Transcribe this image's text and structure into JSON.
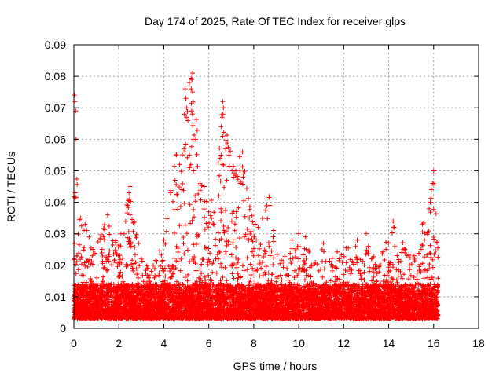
{
  "chart_data": {
    "type": "scatter",
    "title": "Day 174 of 2025, Rate Of TEC Index for receiver glps",
    "xlabel": "GPS time / hours",
    "ylabel": "ROTI / TECUs",
    "xlim": [
      0,
      18
    ],
    "ylim": [
      0,
      0.09
    ],
    "xticks": [
      0,
      2,
      4,
      6,
      8,
      10,
      12,
      14,
      16,
      18
    ],
    "xtick_labels": [
      "0",
      "2",
      "4",
      "6",
      "8",
      "10",
      "12",
      "14",
      "16",
      "18"
    ],
    "yticks": [
      0,
      0.01,
      0.02,
      0.03,
      0.04,
      0.05,
      0.06,
      0.07,
      0.08,
      0.09
    ],
    "ytick_labels": [
      "0",
      "0.01",
      "0.02",
      "0.03",
      "0.04",
      "0.05",
      "0.06",
      "0.07",
      "0.08",
      "0.09"
    ],
    "grid": true,
    "marker": "+",
    "color": "#ff0000",
    "data_range_hours": [
      0,
      16.2
    ],
    "baseline_band": [
      0.003,
      0.014
    ],
    "envelope": [
      {
        "x": 0.0,
        "ymax": 0.074
      },
      {
        "x": 0.1,
        "ymax": 0.06
      },
      {
        "x": 0.3,
        "ymax": 0.035
      },
      {
        "x": 1.0,
        "ymax": 0.028
      },
      {
        "x": 1.5,
        "ymax": 0.036
      },
      {
        "x": 2.0,
        "ymax": 0.028
      },
      {
        "x": 2.5,
        "ymax": 0.045
      },
      {
        "x": 3.0,
        "ymax": 0.022
      },
      {
        "x": 3.5,
        "ymax": 0.02
      },
      {
        "x": 4.0,
        "ymax": 0.028
      },
      {
        "x": 4.5,
        "ymax": 0.055
      },
      {
        "x": 5.0,
        "ymax": 0.076
      },
      {
        "x": 5.3,
        "ymax": 0.081
      },
      {
        "x": 5.7,
        "ymax": 0.045
      },
      {
        "x": 6.0,
        "ymax": 0.038
      },
      {
        "x": 6.6,
        "ymax": 0.072
      },
      {
        "x": 7.0,
        "ymax": 0.058
      },
      {
        "x": 7.5,
        "ymax": 0.056
      },
      {
        "x": 8.0,
        "ymax": 0.033
      },
      {
        "x": 8.7,
        "ymax": 0.042
      },
      {
        "x": 9.0,
        "ymax": 0.025
      },
      {
        "x": 10.0,
        "ymax": 0.03
      },
      {
        "x": 11.0,
        "ymax": 0.025
      },
      {
        "x": 12.0,
        "ymax": 0.025
      },
      {
        "x": 13.0,
        "ymax": 0.03
      },
      {
        "x": 13.5,
        "ymax": 0.02
      },
      {
        "x": 14.2,
        "ymax": 0.034
      },
      {
        "x": 15.0,
        "ymax": 0.022
      },
      {
        "x": 15.5,
        "ymax": 0.033
      },
      {
        "x": 15.8,
        "ymax": 0.04
      },
      {
        "x": 16.0,
        "ymax": 0.05
      },
      {
        "x": 16.2,
        "ymax": 0.025
      }
    ],
    "highlight_points": [
      {
        "x": 0.02,
        "y": 0.074
      },
      {
        "x": 0.05,
        "y": 0.072
      },
      {
        "x": 0.08,
        "y": 0.069
      },
      {
        "x": 0.1,
        "y": 0.06
      },
      {
        "x": 0.06,
        "y": 0.043
      },
      {
        "x": 5.28,
        "y": 0.081
      },
      {
        "x": 5.25,
        "y": 0.079
      },
      {
        "x": 5.22,
        "y": 0.076
      },
      {
        "x": 5.28,
        "y": 0.075
      },
      {
        "x": 4.95,
        "y": 0.076
      },
      {
        "x": 4.98,
        "y": 0.073
      },
      {
        "x": 5.02,
        "y": 0.07
      },
      {
        "x": 4.92,
        "y": 0.068
      },
      {
        "x": 5.0,
        "y": 0.067
      },
      {
        "x": 5.24,
        "y": 0.069
      },
      {
        "x": 5.27,
        "y": 0.068
      },
      {
        "x": 5.3,
        "y": 0.06
      },
      {
        "x": 4.55,
        "y": 0.055
      },
      {
        "x": 4.9,
        "y": 0.057
      },
      {
        "x": 4.95,
        "y": 0.056
      },
      {
        "x": 4.7,
        "y": 0.052
      },
      {
        "x": 5.2,
        "y": 0.052
      },
      {
        "x": 5.32,
        "y": 0.05
      },
      {
        "x": 4.5,
        "y": 0.047
      },
      {
        "x": 4.8,
        "y": 0.044
      },
      {
        "x": 4.3,
        "y": 0.043
      },
      {
        "x": 6.62,
        "y": 0.072
      },
      {
        "x": 6.65,
        "y": 0.07
      },
      {
        "x": 6.6,
        "y": 0.067
      },
      {
        "x": 6.55,
        "y": 0.064
      },
      {
        "x": 6.62,
        "y": 0.061
      },
      {
        "x": 6.75,
        "y": 0.057
      },
      {
        "x": 6.9,
        "y": 0.055
      },
      {
        "x": 6.5,
        "y": 0.054
      },
      {
        "x": 7.5,
        "y": 0.056
      },
      {
        "x": 6.6,
        "y": 0.052
      },
      {
        "x": 7.1,
        "y": 0.048
      },
      {
        "x": 7.4,
        "y": 0.046
      },
      {
        "x": 6.8,
        "y": 0.047
      },
      {
        "x": 5.8,
        "y": 0.045
      },
      {
        "x": 7.2,
        "y": 0.05
      },
      {
        "x": 8.7,
        "y": 0.042
      },
      {
        "x": 8.72,
        "y": 0.039
      },
      {
        "x": 6.0,
        "y": 0.037
      },
      {
        "x": 2.5,
        "y": 0.045
      },
      {
        "x": 2.45,
        "y": 0.043
      },
      {
        "x": 2.48,
        "y": 0.041
      },
      {
        "x": 2.4,
        "y": 0.039
      },
      {
        "x": 2.5,
        "y": 0.036
      },
      {
        "x": 1.5,
        "y": 0.036
      },
      {
        "x": 0.3,
        "y": 0.035
      },
      {
        "x": 0.5,
        "y": 0.033
      },
      {
        "x": 16.0,
        "y": 0.05
      },
      {
        "x": 15.95,
        "y": 0.046
      },
      {
        "x": 15.9,
        "y": 0.044
      },
      {
        "x": 15.85,
        "y": 0.04
      },
      {
        "x": 15.8,
        "y": 0.038
      },
      {
        "x": 15.5,
        "y": 0.033
      },
      {
        "x": 14.2,
        "y": 0.034
      },
      {
        "x": 14.25,
        "y": 0.032
      },
      {
        "x": 13.0,
        "y": 0.03
      },
      {
        "x": 10.0,
        "y": 0.03
      },
      {
        "x": 10.3,
        "y": 0.029
      },
      {
        "x": 9.7,
        "y": 0.028
      },
      {
        "x": 12.6,
        "y": 0.028
      },
      {
        "x": 11.1,
        "y": 0.027
      },
      {
        "x": 8.2,
        "y": 0.032
      },
      {
        "x": 7.8,
        "y": 0.035
      },
      {
        "x": 4.0,
        "y": 0.028
      },
      {
        "x": 3.0,
        "y": 0.022
      }
    ]
  }
}
